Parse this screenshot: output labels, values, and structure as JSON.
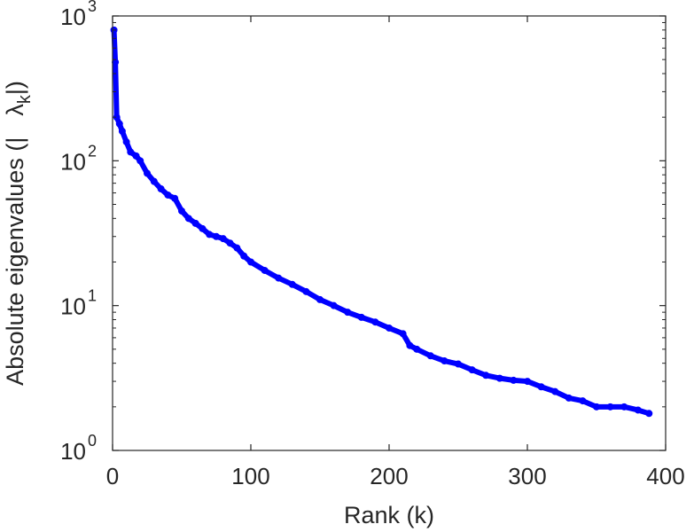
{
  "chart_data": {
    "type": "line",
    "xlabel": "Rank (k)",
    "ylabel_parts": [
      "Absolute eigenvalues (|",
      "λ",
      "k",
      "|)"
    ],
    "xlim": [
      0,
      400
    ],
    "ylim": [
      1,
      1000
    ],
    "yscale": "log",
    "grid": false,
    "line_color": "#0000ff",
    "x_ticks": [
      {
        "value": 0,
        "label": "0"
      },
      {
        "value": 100,
        "label": "100"
      },
      {
        "value": 200,
        "label": "200"
      },
      {
        "value": 300,
        "label": "300"
      },
      {
        "value": 400,
        "label": "400"
      }
    ],
    "y_ticks": [
      {
        "value": 1,
        "base": "10",
        "exp": "0"
      },
      {
        "value": 10,
        "base": "10",
        "exp": "1"
      },
      {
        "value": 100,
        "base": "10",
        "exp": "2"
      },
      {
        "value": 1000,
        "base": "10",
        "exp": "3"
      }
    ],
    "series": [
      {
        "x": [
          1,
          2,
          3,
          5,
          7,
          10,
          13,
          17,
          20,
          25,
          30,
          35,
          40,
          45,
          50,
          55,
          60,
          65,
          70,
          75,
          80,
          85,
          90,
          95,
          100,
          110,
          120,
          130,
          140,
          150,
          160,
          170,
          180,
          190,
          200,
          210,
          215,
          220,
          230,
          240,
          250,
          260,
          270,
          280,
          290,
          300,
          310,
          320,
          330,
          340,
          350,
          360,
          370,
          380,
          388
        ],
        "y": [
          800,
          480,
          200,
          180,
          160,
          135,
          115,
          108,
          100,
          82,
          72,
          64,
          58,
          55,
          45,
          40,
          37,
          34,
          31,
          30,
          29,
          27,
          25,
          22,
          20,
          17.5,
          15.5,
          14,
          12.5,
          11,
          10,
          9,
          8.3,
          7.7,
          7,
          6.4,
          5.3,
          5.0,
          4.5,
          4.15,
          3.95,
          3.6,
          3.3,
          3.15,
          3.05,
          3.0,
          2.75,
          2.55,
          2.3,
          2.2,
          2.0,
          2.0,
          2.0,
          1.9,
          1.8
        ]
      }
    ]
  }
}
